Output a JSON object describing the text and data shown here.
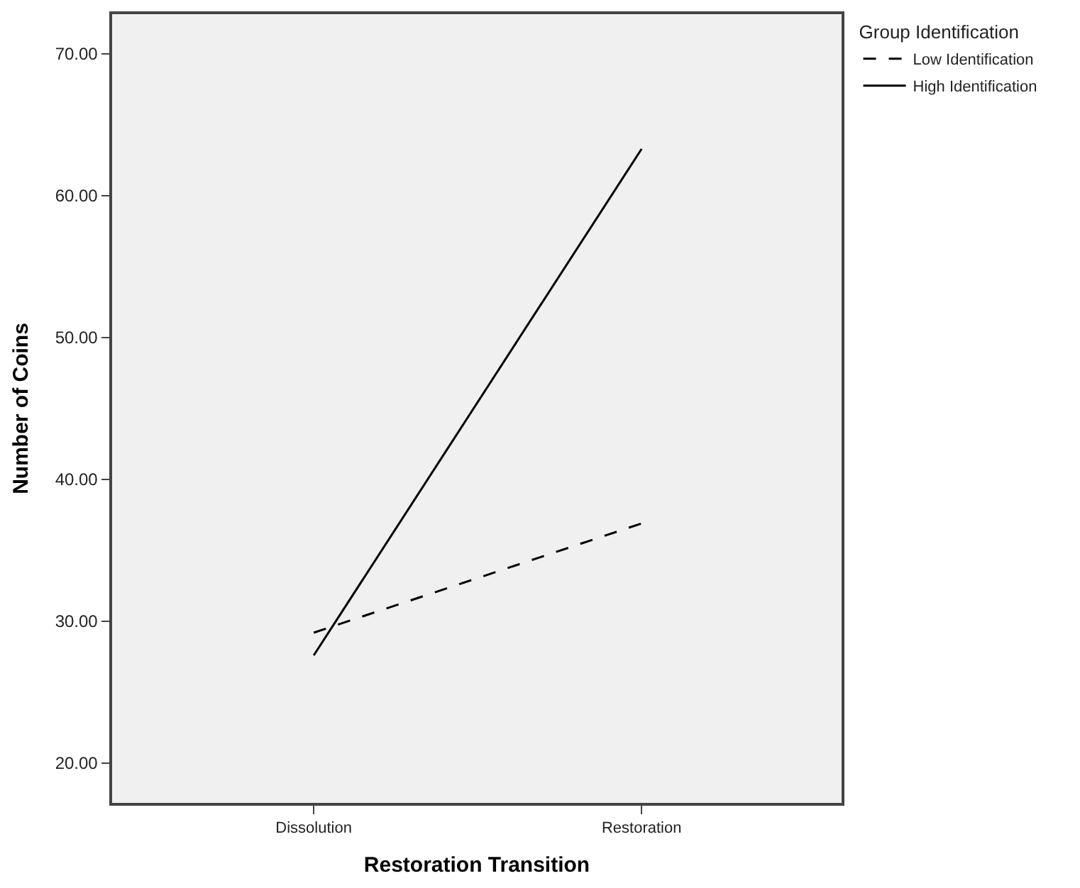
{
  "chart_data": {
    "type": "line",
    "xlabel": "Restoration Transition",
    "ylabel": "Number of Coins",
    "legend_title": "Group Identification",
    "categories": [
      "Dissolution",
      "Restoration"
    ],
    "series": [
      {
        "name": "Low Identification",
        "color": "#000000",
        "values": [
          29.2,
          36.9
        ],
        "line_style": "dashed"
      },
      {
        "name": "High Identification",
        "color": "#000000",
        "values": [
          27.6,
          63.3
        ],
        "line_style": "solid"
      }
    ],
    "ylim": [
      17.2,
      72.8
    ],
    "yticks": [
      {
        "value": 20,
        "label": "20.00"
      },
      {
        "value": 30,
        "label": "30.00"
      },
      {
        "value": 40,
        "label": "40.00"
      },
      {
        "value": 50,
        "label": "50.00"
      },
      {
        "value": 60,
        "label": "60.00"
      },
      {
        "value": 70,
        "label": "70.00"
      }
    ],
    "grid": false,
    "legend": "top right",
    "marker": "none"
  }
}
